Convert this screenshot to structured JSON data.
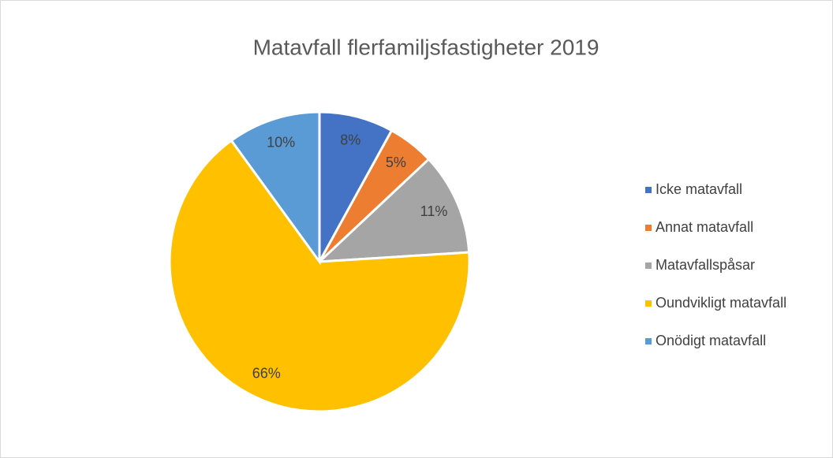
{
  "chart_data": {
    "type": "pie",
    "title": "Matavfall flerfamiljsfastigheter 2019",
    "categories": [
      "Icke matavfall",
      "Annat matavfall",
      "Matavfallspåsar",
      "Oundvikligt matavfall",
      "Onödigt matavfall"
    ],
    "values": [
      8,
      5,
      11,
      66,
      10
    ],
    "value_labels": [
      "8%",
      "5%",
      "11%",
      "66%",
      "10%"
    ],
    "colors": [
      "#4472c4",
      "#ed7d31",
      "#a5a5a5",
      "#ffc000",
      "#5b9bd5"
    ],
    "legend": "right"
  }
}
